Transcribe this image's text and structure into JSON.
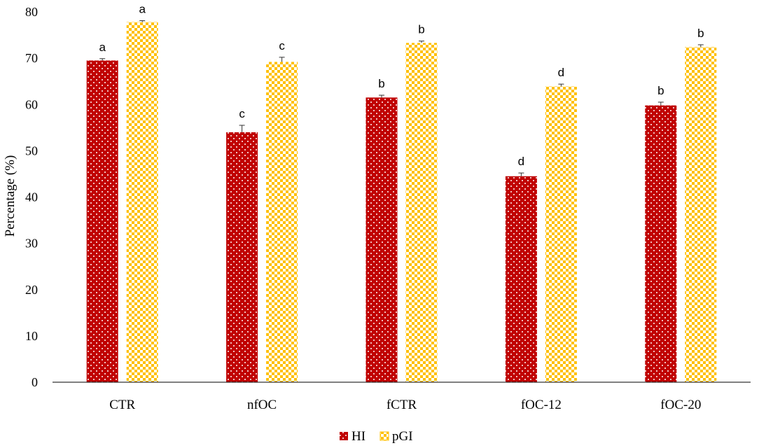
{
  "chart_data": {
    "type": "bar",
    "title": "",
    "xlabel": "",
    "ylabel": "Percentage (%)",
    "ylim": [
      0,
      80
    ],
    "yticks": [
      0,
      10,
      20,
      30,
      40,
      50,
      60,
      70,
      80
    ],
    "grid": false,
    "legend_position": "bottom",
    "categories": [
      "CTR",
      "nfOC",
      "fCTR",
      "fOC-12",
      "fOC-20"
    ],
    "series": [
      {
        "name": "HI",
        "color": "#c00000",
        "pattern": "dots",
        "values": [
          69.5,
          54.0,
          61.5,
          44.5,
          59.8
        ],
        "errors": [
          0.4,
          1.5,
          0.5,
          0.7,
          0.7
        ],
        "significance": [
          "a",
          "c",
          "b",
          "d",
          "b"
        ]
      },
      {
        "name": "pGI",
        "color": "#ffc000",
        "pattern": "checkerboard",
        "values": [
          77.8,
          69.2,
          73.3,
          63.9,
          72.4
        ],
        "errors": [
          0.3,
          1.0,
          0.4,
          0.5,
          0.5
        ],
        "significance": [
          "a",
          "c",
          "b",
          "d",
          "b"
        ]
      }
    ]
  }
}
